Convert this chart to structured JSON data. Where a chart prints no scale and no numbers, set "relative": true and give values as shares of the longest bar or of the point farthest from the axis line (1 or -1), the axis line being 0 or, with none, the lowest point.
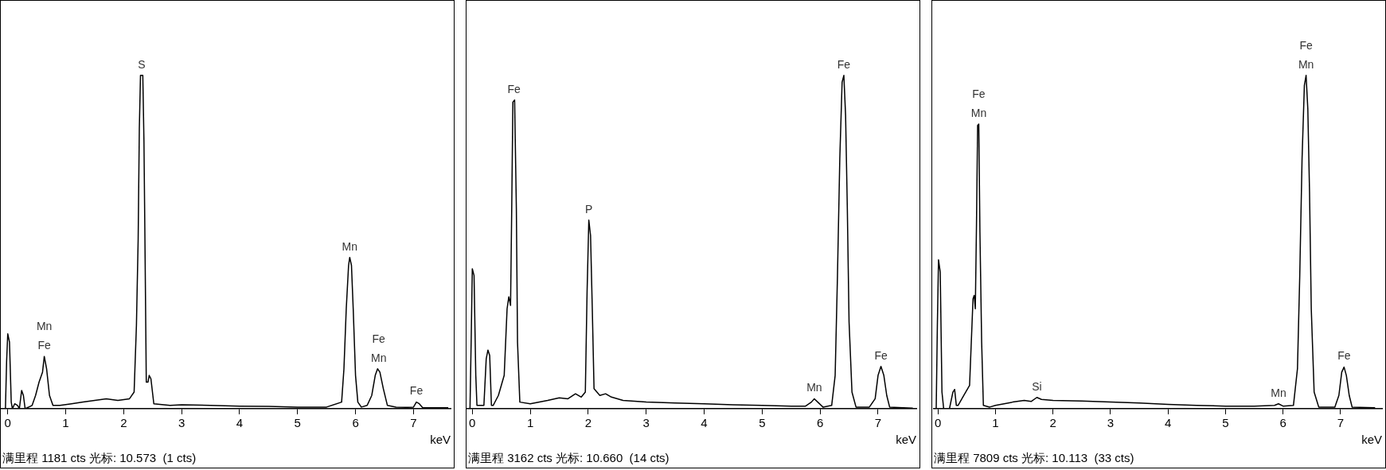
{
  "chart_data": [
    {
      "type": "line",
      "relative": true,
      "xlabel": "keV",
      "xlim": [
        -0.12,
        7.64
      ],
      "xticks": [
        0,
        1,
        2,
        3,
        4,
        5,
        6,
        7
      ],
      "grid": false,
      "x": [
        -0.12,
        -0.04,
        -0.02,
        0.0,
        0.03,
        0.06,
        0.08,
        0.12,
        0.17,
        0.2,
        0.24,
        0.27,
        0.3,
        0.42,
        0.48,
        0.54,
        0.6,
        0.63,
        0.67,
        0.72,
        0.78,
        0.9,
        1.1,
        1.3,
        1.5,
        1.7,
        1.9,
        2.1,
        2.18,
        2.22,
        2.25,
        2.27,
        2.29,
        2.33,
        2.35,
        2.37,
        2.39,
        2.42,
        2.44,
        2.47,
        2.52,
        2.8,
        3.0,
        3.5,
        4.0,
        4.5,
        5.0,
        5.5,
        5.76,
        5.8,
        5.84,
        5.88,
        5.9,
        5.93,
        5.96,
        6.0,
        6.04,
        6.1,
        6.2,
        6.28,
        6.34,
        6.38,
        6.42,
        6.48,
        6.55,
        6.7,
        6.9,
        7.0,
        7.05,
        7.1,
        7.16,
        7.4,
        7.6
      ],
      "series": [
        {
          "color": "#000000",
          "values": [
            0,
            0,
            0.14,
            0.225,
            0.2,
            0.02,
            0,
            0.015,
            0.01,
            0,
            0.055,
            0.04,
            0,
            0.01,
            0.04,
            0.08,
            0.11,
            0.157,
            0.12,
            0.04,
            0.01,
            0.01,
            0.015,
            0.02,
            0.025,
            0.03,
            0.025,
            0.03,
            0.05,
            0.25,
            0.51,
            0.84,
            1.0,
            1.0,
            0.8,
            0.45,
            0.08,
            0.08,
            0.1,
            0.09,
            0.015,
            0.01,
            0.012,
            0.01,
            0.008,
            0.007,
            0.005,
            0.005,
            0.02,
            0.12,
            0.3,
            0.43,
            0.454,
            0.43,
            0.3,
            0.1,
            0.02,
            0.005,
            0.01,
            0.04,
            0.1,
            0.12,
            0.11,
            0.06,
            0.01,
            0.005,
            0.004,
            0.005,
            0.02,
            0.015,
            0.003,
            0.003,
            0.003
          ]
        }
      ],
      "annotations": [
        {
          "text": "S",
          "x": 2.31,
          "y": 1.0
        },
        {
          "text": "Fe",
          "x": 0.63,
          "y": 0.157
        },
        {
          "text": "Mn",
          "x": 0.63,
          "y": 0.157
        },
        {
          "text": "Mn",
          "x": 5.9,
          "y": 0.454
        },
        {
          "text": "Mn",
          "x": 6.4,
          "y": 0.12
        },
        {
          "text": "Fe",
          "x": 6.4,
          "y": 0.12
        },
        {
          "text": "Fe",
          "x": 7.05,
          "y": 0.02
        },
        "满里程 1181 cts 光标: 10.573  (1 cts)"
      ]
    },
    {
      "type": "line",
      "relative": true,
      "xlabel": "keV",
      "xlim": [
        -0.1,
        7.66
      ],
      "xticks": [
        0,
        1,
        2,
        3,
        4,
        5,
        6,
        7
      ],
      "grid": false,
      "x": [
        -0.1,
        -0.04,
        -0.02,
        0.0,
        0.03,
        0.06,
        0.08,
        0.12,
        0.2,
        0.24,
        0.27,
        0.3,
        0.33,
        0.36,
        0.45,
        0.55,
        0.6,
        0.63,
        0.66,
        0.68,
        0.7,
        0.73,
        0.76,
        0.78,
        0.82,
        1.0,
        1.3,
        1.5,
        1.65,
        1.78,
        1.88,
        1.95,
        1.98,
        2.01,
        2.04,
        2.07,
        2.1,
        2.2,
        2.3,
        2.4,
        2.6,
        3.0,
        3.5,
        4.0,
        4.5,
        5.0,
        5.5,
        5.75,
        5.85,
        5.9,
        5.96,
        6.05,
        6.2,
        6.26,
        6.3,
        6.34,
        6.38,
        6.41,
        6.44,
        6.47,
        6.5,
        6.55,
        6.62,
        6.85,
        6.95,
        7.0,
        7.05,
        7.1,
        7.15,
        7.2,
        7.6
      ],
      "series": [
        {
          "color": "#000000",
          "values": [
            0,
            0,
            0.2,
            0.42,
            0.4,
            0.1,
            0.01,
            0.01,
            0.01,
            0.15,
            0.176,
            0.16,
            0.01,
            0.01,
            0.04,
            0.1,
            0.3,
            0.336,
            0.31,
            0.6,
            0.92,
            0.926,
            0.6,
            0.2,
            0.02,
            0.015,
            0.025,
            0.033,
            0.03,
            0.045,
            0.035,
            0.05,
            0.35,
            0.566,
            0.52,
            0.3,
            0.06,
            0.04,
            0.045,
            0.035,
            0.025,
            0.02,
            0.017,
            0.015,
            0.012,
            0.01,
            0.008,
            0.008,
            0.02,
            0.03,
            0.02,
            0.005,
            0.01,
            0.1,
            0.4,
            0.75,
            0.98,
            1.0,
            0.88,
            0.6,
            0.26,
            0.05,
            0.005,
            0.005,
            0.03,
            0.1,
            0.127,
            0.1,
            0.04,
            0.005,
            0.002
          ]
        }
      ],
      "annotations": [
        {
          "text": "Fe",
          "x": 0.72,
          "y": 0.926
        },
        {
          "text": "P",
          "x": 2.01,
          "y": 0.566
        },
        {
          "text": "Mn",
          "x": 5.9,
          "y": 0.03
        },
        {
          "text": "Fe",
          "x": 6.41,
          "y": 1.0
        },
        {
          "text": "Fe",
          "x": 7.05,
          "y": 0.127
        },
        "满里程 3162 cts 光标: 10.660  (14 cts)"
      ]
    },
    {
      "type": "line",
      "relative": true,
      "xlabel": "keV",
      "xlim": [
        -0.07,
        7.72
      ],
      "xticks": [
        0,
        1,
        2,
        3,
        4,
        5,
        6,
        7
      ],
      "grid": false,
      "x": [
        -0.07,
        -0.03,
        -0.01,
        0.01,
        0.04,
        0.07,
        0.1,
        0.2,
        0.26,
        0.29,
        0.32,
        0.35,
        0.45,
        0.55,
        0.58,
        0.61,
        0.63,
        0.65,
        0.67,
        0.69,
        0.71,
        0.73,
        0.76,
        0.79,
        0.9,
        1.0,
        1.3,
        1.5,
        1.62,
        1.72,
        1.8,
        2.0,
        2.5,
        3.0,
        3.5,
        4.0,
        4.5,
        5.0,
        5.5,
        5.85,
        5.92,
        6.0,
        6.18,
        6.25,
        6.29,
        6.33,
        6.37,
        6.4,
        6.43,
        6.46,
        6.49,
        6.54,
        6.62,
        6.9,
        6.97,
        7.02,
        7.06,
        7.1,
        7.15,
        7.2,
        7.6
      ],
      "series": [
        {
          "color": "#000000",
          "values": [
            0,
            0,
            0.25,
            0.447,
            0.41,
            0.05,
            0,
            0,
            0.05,
            0.058,
            0.01,
            0.01,
            0.04,
            0.07,
            0.2,
            0.33,
            0.34,
            0.3,
            0.55,
            0.85,
            0.854,
            0.53,
            0.2,
            0.01,
            0.005,
            0.01,
            0.02,
            0.025,
            0.022,
            0.034,
            0.028,
            0.025,
            0.023,
            0.02,
            0.017,
            0.013,
            0.01,
            0.008,
            0.008,
            0.01,
            0.015,
            0.008,
            0.01,
            0.12,
            0.4,
            0.75,
            0.97,
            1.0,
            0.9,
            0.65,
            0.3,
            0.05,
            0.005,
            0.005,
            0.04,
            0.11,
            0.125,
            0.1,
            0.04,
            0.005,
            0.003
          ]
        }
      ],
      "annotations": [
        {
          "text": "Mn",
          "x": 0.71,
          "y": 0.854
        },
        {
          "text": "Fe",
          "x": 0.71,
          "y": 0.854
        },
        {
          "text": "Si",
          "x": 1.72,
          "y": 0.034
        },
        {
          "text": "Mn",
          "x": 5.92,
          "y": 0.015
        },
        {
          "text": "Mn",
          "x": 6.4,
          "y": 1.0
        },
        {
          "text": "Fe",
          "x": 6.4,
          "y": 1.0
        },
        {
          "text": "Fe",
          "x": 7.06,
          "y": 0.125
        },
        "满里程 7809 cts 光标: 10.113  (33 cts)"
      ]
    }
  ]
}
